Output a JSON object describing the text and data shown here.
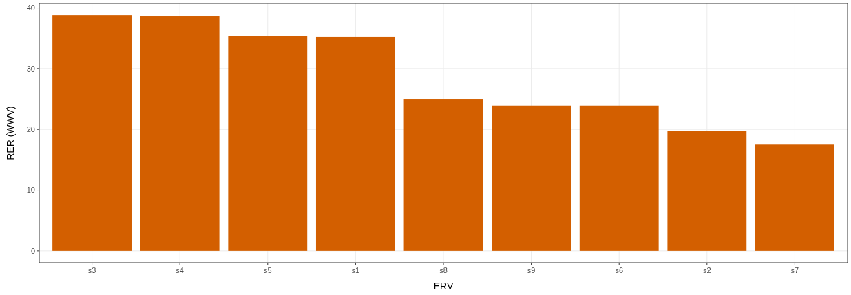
{
  "chart_data": {
    "type": "bar",
    "xlabel": "ERV",
    "ylabel": "RER (WWV)",
    "categories": [
      "s3",
      "s4",
      "s5",
      "s1",
      "s8",
      "s9",
      "s6",
      "s2",
      "s7"
    ],
    "values": [
      38.8,
      38.7,
      35.4,
      35.2,
      25.0,
      23.9,
      23.9,
      19.7,
      17.5
    ],
    "color": "#d35f00",
    "ylim": [
      -1.94,
      40.74
    ],
    "yticks": [
      0,
      10,
      20,
      30,
      40
    ],
    "grid": true
  }
}
